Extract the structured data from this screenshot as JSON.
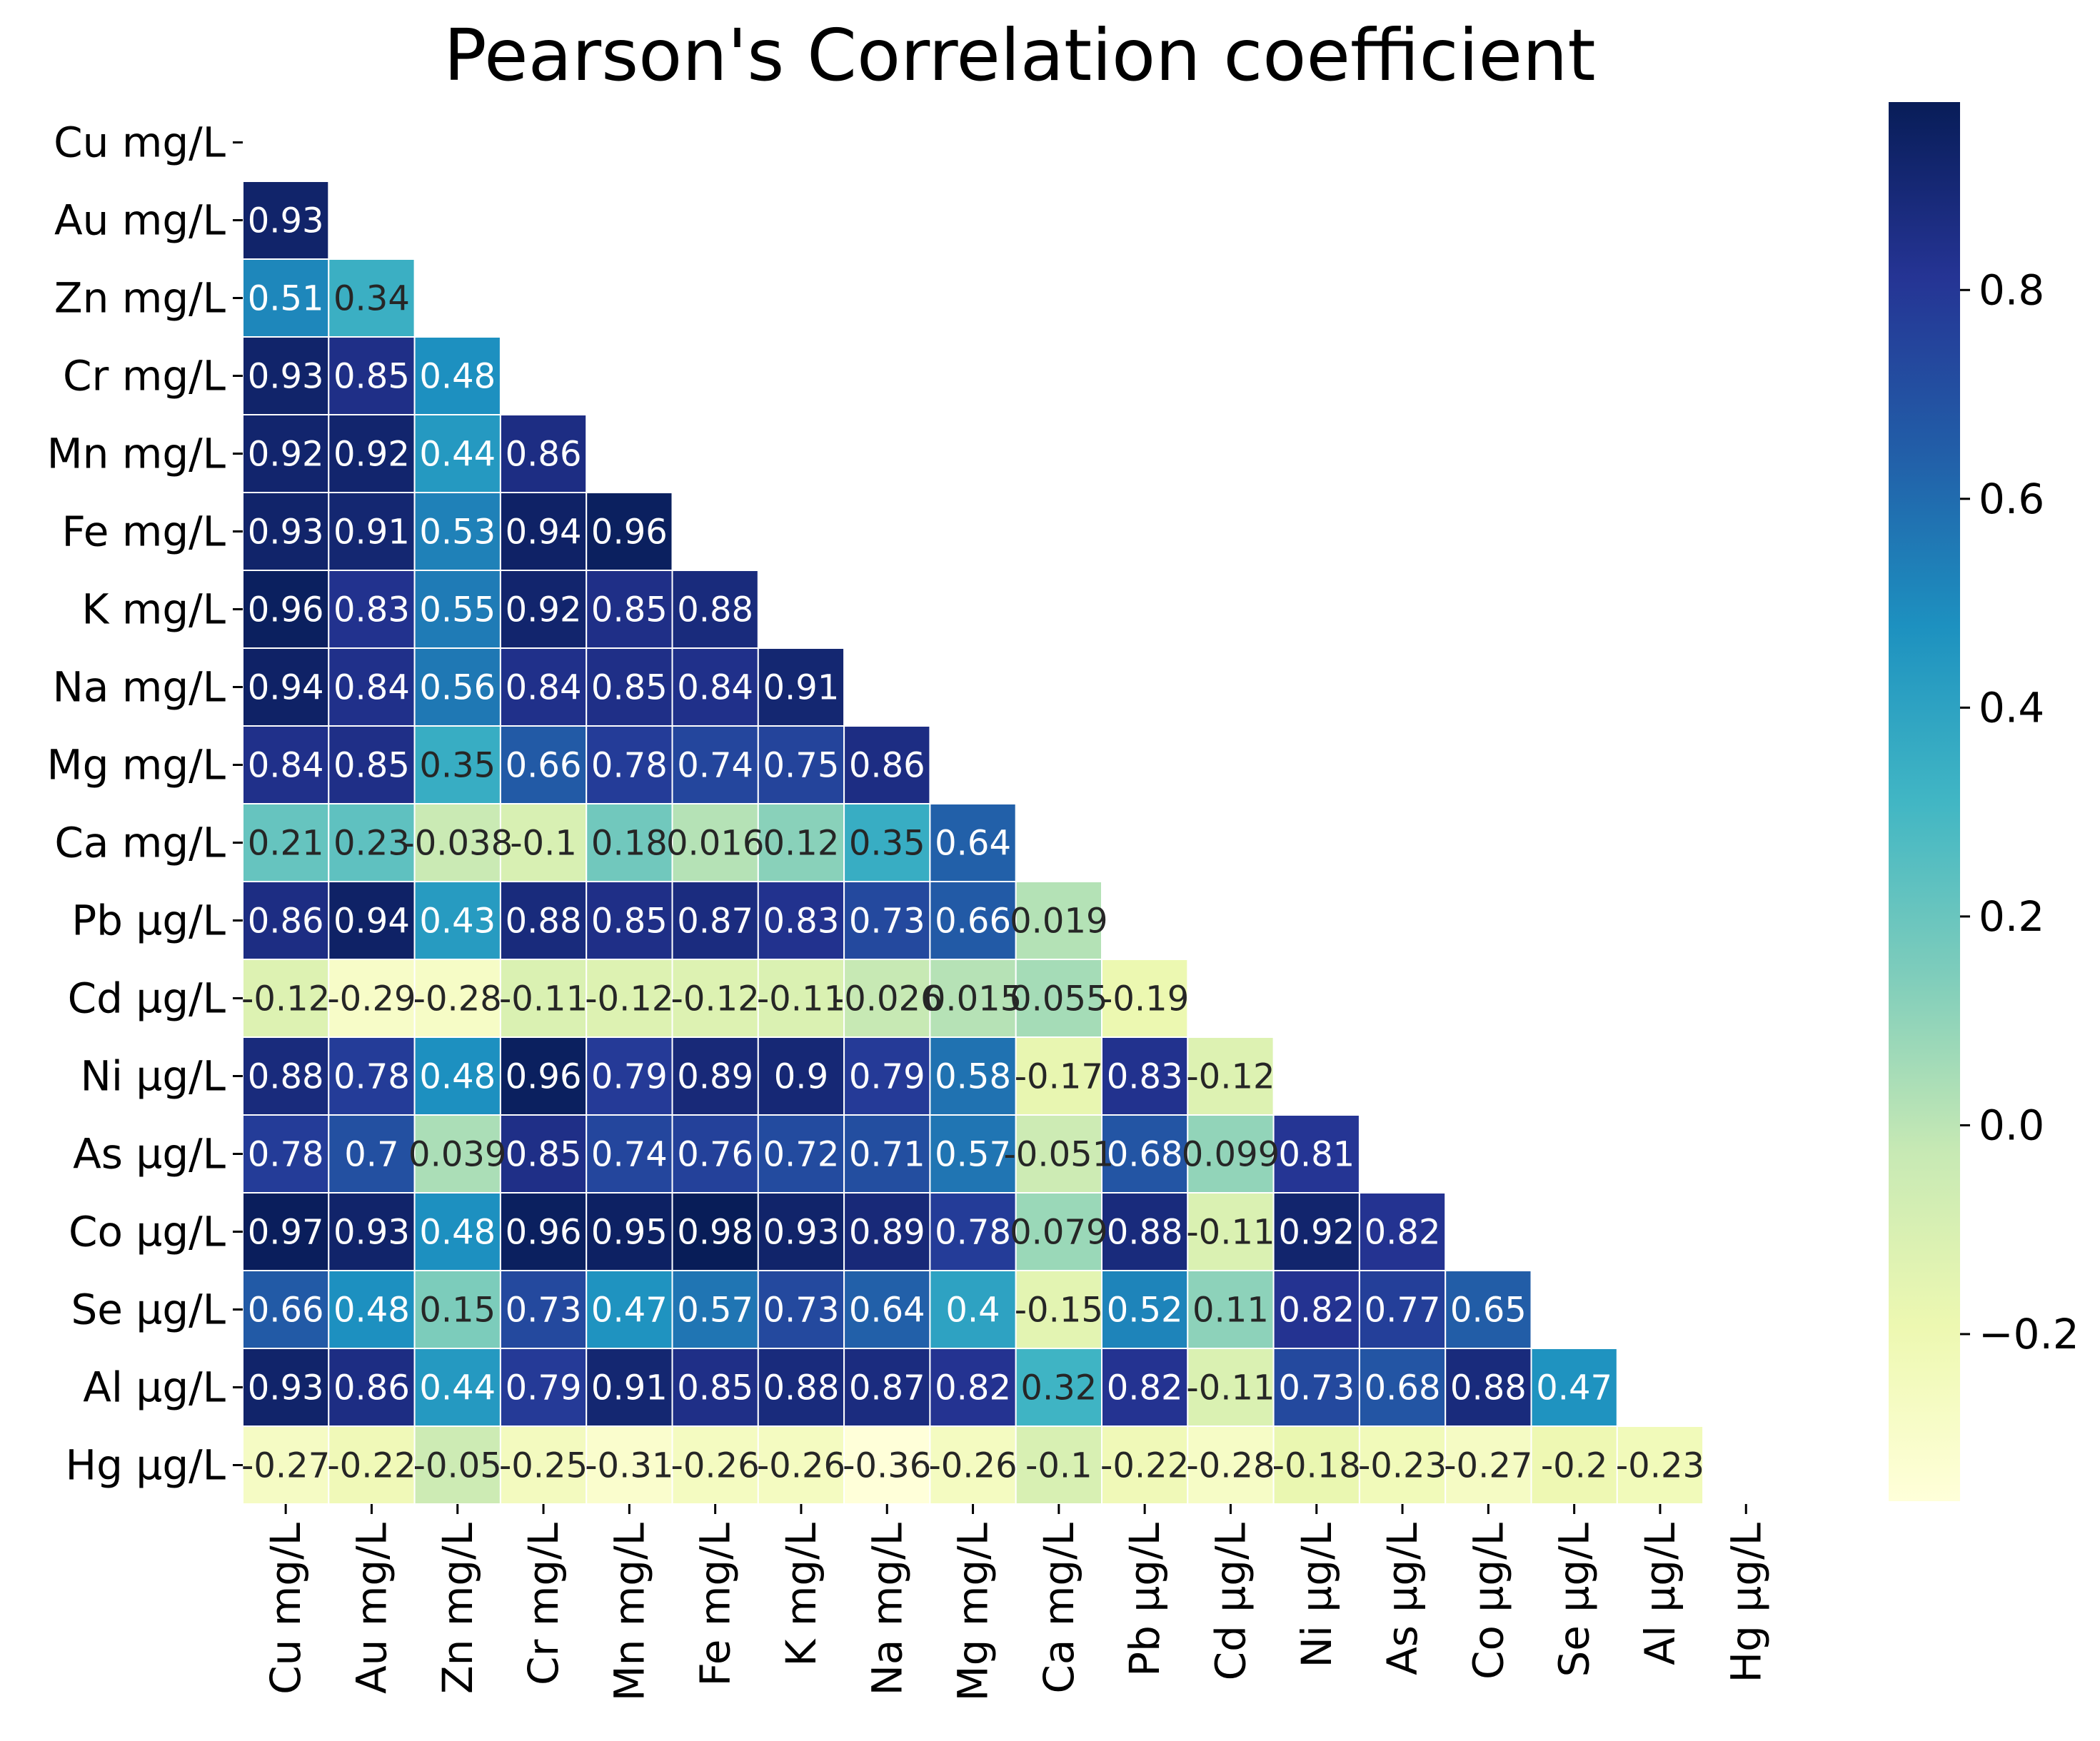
{
  "chart_data": {
    "type": "heatmap",
    "title": "Pearson's Correlation coefficient",
    "row_labels": [
      "Cu mg/L",
      "Au mg/L",
      "Zn mg/L",
      "Cr mg/L",
      "Mn mg/L",
      "Fe mg/L",
      "K mg/L",
      "Na mg/L",
      "Mg mg/L",
      "Ca mg/L",
      "Pb µg/L",
      "Cd µg/L",
      "Ni µg/L",
      "As µg/L",
      "Co µg/L",
      "Se µg/L",
      "Al µg/L",
      "Hg µg/L"
    ],
    "col_labels": [
      "Cu mg/L",
      "Au mg/L",
      "Zn mg/L",
      "Cr mg/L",
      "Mn mg/L",
      "Fe mg/L",
      "K mg/L",
      "Na mg/L",
      "Mg mg/L",
      "Ca mg/L",
      "Pb µg/L",
      "Cd µg/L",
      "Ni µg/L",
      "As µg/L",
      "Co µg/L",
      "Se µg/L",
      "Al µg/L",
      "Hg µg/L"
    ],
    "mask": "upper-triangle-including-diagonal",
    "values": [
      [],
      [
        0.93
      ],
      [
        0.51,
        0.34
      ],
      [
        0.93,
        0.85,
        0.48
      ],
      [
        0.92,
        0.92,
        0.44,
        0.86
      ],
      [
        0.93,
        0.91,
        0.53,
        0.94,
        0.96
      ],
      [
        0.96,
        0.83,
        0.55,
        0.92,
        0.85,
        0.88
      ],
      [
        0.94,
        0.84,
        0.56,
        0.84,
        0.85,
        0.84,
        0.91
      ],
      [
        0.84,
        0.85,
        0.35,
        0.66,
        0.78,
        0.74,
        0.75,
        0.86
      ],
      [
        0.21,
        0.23,
        -0.038,
        -0.1,
        0.18,
        0.016,
        0.12,
        0.35,
        0.64
      ],
      [
        0.86,
        0.94,
        0.43,
        0.88,
        0.85,
        0.87,
        0.83,
        0.73,
        0.66,
        0.019
      ],
      [
        -0.12,
        -0.29,
        -0.28,
        -0.11,
        -0.12,
        -0.12,
        -0.11,
        -0.026,
        0.015,
        0.055,
        -0.19
      ],
      [
        0.88,
        0.78,
        0.48,
        0.96,
        0.79,
        0.89,
        0.9,
        0.79,
        0.58,
        -0.17,
        0.83,
        -0.12
      ],
      [
        0.78,
        0.7,
        0.039,
        0.85,
        0.74,
        0.76,
        0.72,
        0.71,
        0.57,
        -0.051,
        0.68,
        0.099,
        0.81
      ],
      [
        0.97,
        0.93,
        0.48,
        0.96,
        0.95,
        0.98,
        0.93,
        0.89,
        0.78,
        0.079,
        0.88,
        -0.11,
        0.92,
        0.82
      ],
      [
        0.66,
        0.48,
        0.15,
        0.73,
        0.47,
        0.57,
        0.73,
        0.64,
        0.4,
        -0.15,
        0.52,
        0.11,
        0.82,
        0.77,
        0.65
      ],
      [
        0.93,
        0.86,
        0.44,
        0.79,
        0.91,
        0.85,
        0.88,
        0.87,
        0.82,
        0.32,
        0.82,
        -0.11,
        0.73,
        0.68,
        0.88,
        0.47
      ],
      [
        -0.27,
        -0.22,
        -0.05,
        -0.25,
        -0.31,
        -0.26,
        -0.26,
        -0.36,
        -0.26,
        -0.1,
        -0.22,
        -0.28,
        -0.18,
        -0.23,
        -0.27,
        -0.2,
        -0.23
      ]
    ],
    "cell_labels": [
      [],
      [
        "0.93"
      ],
      [
        "0.51",
        "0.34"
      ],
      [
        "0.93",
        "0.85",
        "0.48"
      ],
      [
        "0.92",
        "0.92",
        "0.44",
        "0.86"
      ],
      [
        "0.93",
        "0.91",
        "0.53",
        "0.94",
        "0.96"
      ],
      [
        "0.96",
        "0.83",
        "0.55",
        "0.92",
        "0.85",
        "0.88"
      ],
      [
        "0.94",
        "0.84",
        "0.56",
        "0.84",
        "0.85",
        "0.84",
        "0.91"
      ],
      [
        "0.84",
        "0.85",
        "0.35",
        "0.66",
        "0.78",
        "0.74",
        "0.75",
        "0.86"
      ],
      [
        "0.21",
        "0.23",
        "-0.038",
        "-0.1",
        "0.18",
        "0.016",
        "0.12",
        "0.35",
        "0.64"
      ],
      [
        "0.86",
        "0.94",
        "0.43",
        "0.88",
        "0.85",
        "0.87",
        "0.83",
        "0.73",
        "0.66",
        "0.019"
      ],
      [
        "-0.12",
        "-0.29",
        "-0.28",
        "-0.11",
        "-0.12",
        "-0.12",
        "-0.11",
        "-0.026",
        "0.015",
        "0.055",
        "-0.19"
      ],
      [
        "0.88",
        "0.78",
        "0.48",
        "0.96",
        "0.79",
        "0.89",
        "0.9",
        "0.79",
        "0.58",
        "-0.17",
        "0.83",
        "-0.12"
      ],
      [
        "0.78",
        "0.7",
        "0.039",
        "0.85",
        "0.74",
        "0.76",
        "0.72",
        "0.71",
        "0.57",
        "-0.051",
        "0.68",
        "0.099",
        "0.81"
      ],
      [
        "0.97",
        "0.93",
        "0.48",
        "0.96",
        "0.95",
        "0.98",
        "0.93",
        "0.89",
        "0.78",
        "0.079",
        "0.88",
        "-0.11",
        "0.92",
        "0.82"
      ],
      [
        "0.66",
        "0.48",
        "0.15",
        "0.73",
        "0.47",
        "0.57",
        "0.73",
        "0.64",
        "0.4",
        "-0.15",
        "0.52",
        "0.11",
        "0.82",
        "0.77",
        "0.65"
      ],
      [
        "0.93",
        "0.86",
        "0.44",
        "0.79",
        "0.91",
        "0.85",
        "0.88",
        "0.87",
        "0.82",
        "0.32",
        "0.82",
        "-0.11",
        "0.73",
        "0.68",
        "0.88",
        "0.47"
      ],
      [
        "-0.27",
        "-0.22",
        "-0.05",
        "-0.25",
        "-0.31",
        "-0.26",
        "-0.26",
        "-0.36",
        "-0.26",
        "-0.1",
        "-0.22",
        "-0.28",
        "-0.18",
        "-0.23",
        "-0.27",
        "-0.2",
        "-0.23"
      ]
    ],
    "colormap": "YlGnBu",
    "colorbar": {
      "vmin": -0.36,
      "vmax": 0.98,
      "ticks": [
        0.8,
        0.6,
        0.4,
        0.2,
        0.0,
        -0.2
      ],
      "tick_labels": [
        "0.8",
        "0.6",
        "0.4",
        "0.2",
        "0.0",
        "−0.2"
      ]
    },
    "xlabel": "",
    "ylabel": ""
  }
}
